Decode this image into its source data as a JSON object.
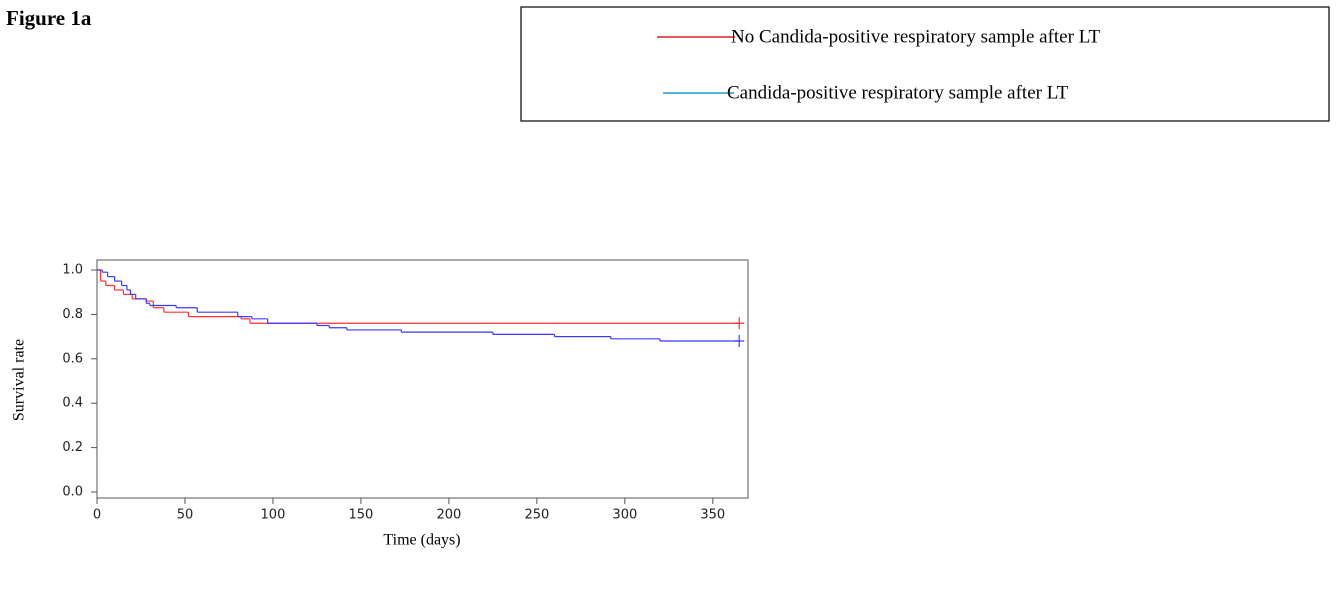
{
  "figure_label": "Figure 1a",
  "chart_data": {
    "type": "step",
    "xlabel": "Time (days)",
    "ylabel": "Survival rate",
    "xlim": [
      0,
      370
    ],
    "ylim": [
      -0.027,
      1.045
    ],
    "xticks": [
      0,
      50,
      100,
      150,
      200,
      250,
      300,
      350
    ],
    "yticks": [
      {
        "value": 0,
        "label": "0.0"
      },
      0.2,
      0.4,
      0.6,
      0.8,
      {
        "value": 1,
        "label": "1.0"
      }
    ],
    "legend_entries": [
      {
        "label": "No Candida-positive respiratory sample after LT",
        "color": "#e0201e"
      },
      {
        "label": "Candida-positive respiratory sample after LT",
        "color": "#1a9fd0"
      }
    ],
    "series": [
      {
        "color": "#ff3030",
        "x": [
          0,
          2,
          5,
          10,
          15,
          20,
          28,
          32,
          38,
          52,
          82,
          87,
          365
        ],
        "values": [
          1.0,
          0.95,
          0.93,
          0.91,
          0.89,
          0.87,
          0.86,
          0.83,
          0.81,
          0.79,
          0.78,
          0.76,
          0.76
        ]
      },
      {
        "color": "#3a3aff",
        "x": [
          0,
          3,
          6,
          10,
          14,
          17,
          19,
          22,
          28,
          30,
          45,
          57,
          80,
          88,
          97,
          125,
          132,
          142,
          173,
          225,
          260,
          292,
          320,
          365
        ],
        "values": [
          1.0,
          0.99,
          0.97,
          0.95,
          0.93,
          0.91,
          0.89,
          0.87,
          0.85,
          0.84,
          0.83,
          0.81,
          0.79,
          0.78,
          0.76,
          0.75,
          0.74,
          0.73,
          0.72,
          0.71,
          0.7,
          0.69,
          0.68,
          0.68
        ]
      }
    ]
  }
}
